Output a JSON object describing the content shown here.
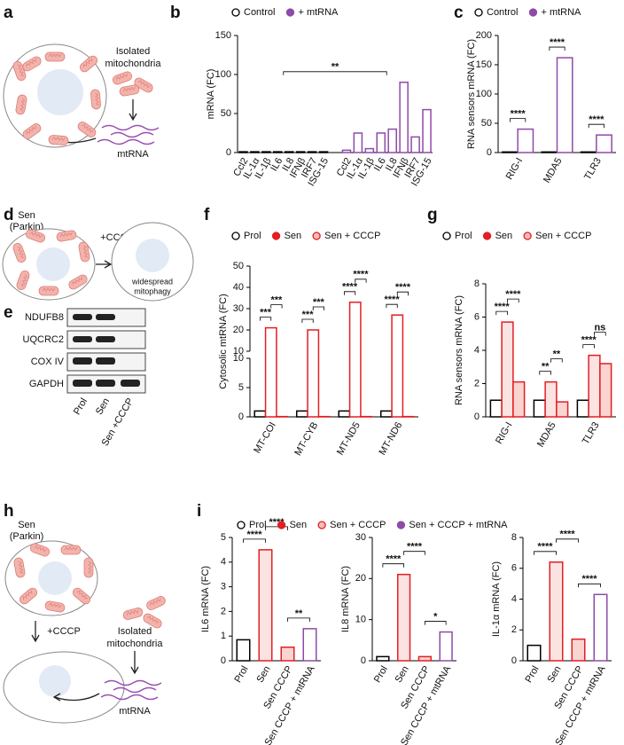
{
  "panels": [
    "a",
    "b",
    "c",
    "d",
    "e",
    "f",
    "g",
    "h",
    "i"
  ],
  "diagram_a": {
    "isolated": [
      "Isolated",
      "mitochondria"
    ],
    "rna": "mtRNA"
  },
  "diagram_d": {
    "cell": [
      "Sen",
      "(Parkin)"
    ],
    "treatment": "+CCCP",
    "result": [
      "widespread",
      "mitophagy"
    ]
  },
  "blot": {
    "proteins": [
      "NDUFB8",
      "UQCRC2",
      "COX IV",
      "GAPDH"
    ],
    "lanes": [
      "Prol",
      "Sen",
      "Sen +CCCP"
    ]
  },
  "diagram_h": {
    "cell": [
      "Sen",
      "(Parkin)"
    ],
    "treatment": "+CCCP",
    "isolated": [
      "Isolated",
      "mitochondria"
    ],
    "rna": "mtRNA"
  },
  "chart_data": [
    {
      "type": "bar",
      "ylabel": "mRNA (FC)",
      "categories": [
        "Ccl2",
        "IL-1α",
        "IL-1β",
        "IL6",
        "IL8",
        "IFNβ",
        "IRF7",
        "ISG-15"
      ],
      "series": [
        {
          "name": "Control",
          "color": "#000000",
          "fill": "#ffffff",
          "marker": "#ffffff",
          "values": [
            1,
            1,
            1,
            1,
            1,
            1,
            1,
            1
          ]
        },
        {
          "name": "+ mtRNA",
          "color": "#8e4ba8",
          "fill": "#ffffff",
          "marker": "#8e4ba8",
          "values": [
            3,
            25,
            5,
            25,
            30,
            90,
            20,
            55
          ]
        }
      ],
      "ylim": [
        0,
        150
      ],
      "yticks": [
        0,
        50,
        100,
        150
      ],
      "legend": true,
      "annotations": [
        {
          "label": "**",
          "pair": [
            0,
            1
          ]
        }
      ]
    },
    {
      "type": "bar",
      "ylabel": "RNA sensors mRNA (FC)",
      "categories": [
        "RIG-I",
        "MDA5",
        "TLR3"
      ],
      "series": [
        {
          "name": "Control",
          "color": "#000000",
          "fill": "#ffffff",
          "marker": "#ffffff",
          "values": [
            1,
            1,
            1
          ]
        },
        {
          "name": "+ mtRNA",
          "color": "#8e4ba8",
          "fill": "#ffffff",
          "marker": "#8e4ba8",
          "values": [
            40,
            162,
            30
          ]
        }
      ],
      "ylim": [
        0,
        200
      ],
      "yticks": [
        0,
        50,
        100,
        150,
        200
      ],
      "legend": true,
      "annotations": [
        {
          "label": "****",
          "category": 0,
          "pair": [
            0,
            1
          ]
        },
        {
          "label": "****",
          "category": 1,
          "pair": [
            0,
            1
          ]
        },
        {
          "label": "****",
          "category": 2,
          "pair": [
            0,
            1
          ]
        }
      ]
    },
    {
      "type": "bar",
      "ylabel": "Cytosolic mtRNA (FC)",
      "categories": [
        "MT-COI",
        "MT-CYB",
        "MT-ND5",
        "MT-ND6"
      ],
      "series": [
        {
          "name": "Prol",
          "color": "#000000",
          "fill": "#ffffff",
          "marker": "#ffffff",
          "values": [
            1,
            1,
            1,
            1
          ]
        },
        {
          "name": "Sen",
          "color": "#e31e24",
          "fill": "#ffffff",
          "marker": "#e31e24",
          "values": [
            21,
            20,
            33,
            27
          ]
        },
        {
          "name": "Sen + CCCP",
          "color": "#e31e24",
          "fill": "#fad4d0",
          "marker": "#f5bdb8",
          "values": [
            0.05,
            0.05,
            0.05,
            0.05
          ]
        }
      ],
      "ylim": [
        0,
        50
      ],
      "ybreak": 10,
      "yticks": [
        0,
        5,
        10,
        20,
        30,
        40,
        50
      ],
      "legend": true,
      "annotations": [
        {
          "label": "***",
          "category": 0,
          "pair": [
            0,
            1
          ]
        },
        {
          "label": "***",
          "category": 0,
          "pair": [
            1,
            2
          ]
        },
        {
          "label": "***",
          "category": 1,
          "pair": [
            0,
            1
          ]
        },
        {
          "label": "***",
          "category": 1,
          "pair": [
            1,
            2
          ]
        },
        {
          "label": "****",
          "category": 2,
          "pair": [
            0,
            1
          ]
        },
        {
          "label": "****",
          "category": 2,
          "pair": [
            1,
            2
          ]
        },
        {
          "label": "****",
          "category": 3,
          "pair": [
            0,
            1
          ]
        },
        {
          "label": "****",
          "category": 3,
          "pair": [
            1,
            2
          ]
        }
      ]
    },
    {
      "type": "bar",
      "ylabel": "RNA sensors mRNA (FC)",
      "categories": [
        "RIG-I",
        "MDA5",
        "TLR3"
      ],
      "series": [
        {
          "name": "Prol",
          "color": "#000000",
          "fill": "#ffffff",
          "marker": "#ffffff",
          "values": [
            1,
            1,
            1
          ]
        },
        {
          "name": "Sen",
          "color": "#e31e24",
          "fill": "#fbe3e1",
          "marker": "#e31e24",
          "values": [
            5.7,
            2.1,
            3.7
          ]
        },
        {
          "name": "Sen + CCCP",
          "color": "#e31e24",
          "fill": "#fad4d0",
          "marker": "#f5bdb8",
          "values": [
            2.1,
            0.9,
            3.2
          ]
        }
      ],
      "ylim": [
        0,
        8
      ],
      "yticks": [
        0,
        2,
        4,
        6,
        8
      ],
      "legend": true,
      "annotations": [
        {
          "label": "****",
          "category": 0,
          "pair": [
            0,
            1
          ]
        },
        {
          "label": "****",
          "category": 0,
          "pair": [
            1,
            2
          ]
        },
        {
          "label": "**",
          "category": 1,
          "pair": [
            0,
            1
          ]
        },
        {
          "label": "**",
          "category": 1,
          "pair": [
            1,
            2
          ]
        },
        {
          "label": "****",
          "category": 2,
          "pair": [
            0,
            1
          ]
        },
        {
          "label": "ns",
          "category": 2,
          "pair": [
            1,
            2
          ]
        }
      ]
    },
    {
      "type": "bar",
      "ylabel": "IL6 mRNA (FC)",
      "categories": [
        "Prol",
        "Sen",
        "Sen CCCP",
        "Sen CCCP + mtRNA"
      ],
      "values": [
        0.85,
        4.5,
        0.55,
        1.3
      ],
      "colors": [
        "#000000",
        "#e31e24",
        "#e31e24",
        "#8e4ba8"
      ],
      "fills": [
        "#ffffff",
        "#fbe3e1",
        "#fad4d0",
        "#ffffff"
      ],
      "ylim": [
        0,
        5
      ],
      "yticks": [
        0,
        1,
        2,
        3,
        4,
        5
      ],
      "legend_entries": [
        {
          "name": "Prol",
          "color": "#000000",
          "marker": "#ffffff"
        },
        {
          "name": "Sen",
          "color": "#e31e24",
          "marker": "#e31e24"
        },
        {
          "name": "Sen + CCCP",
          "color": "#e31e24",
          "marker": "#f5bdb8"
        },
        {
          "name": "Sen + CCCP + mtRNA",
          "color": "#8e4ba8",
          "marker": "#8e4ba8"
        }
      ],
      "annotations": [
        {
          "label": "****",
          "pair": [
            0,
            1
          ]
        },
        {
          "label": "****",
          "pair": [
            1,
            2
          ]
        },
        {
          "label": "**",
          "pair": [
            2,
            3
          ]
        }
      ]
    },
    {
      "type": "bar",
      "ylabel": "IL8 mRNA (FC)",
      "categories": [
        "Prol",
        "Sen",
        "Sen CCCP",
        "Sen CCCP + mtRNA"
      ],
      "values": [
        1,
        21,
        1,
        7
      ],
      "colors": [
        "#000000",
        "#e31e24",
        "#e31e24",
        "#8e4ba8"
      ],
      "fills": [
        "#ffffff",
        "#fbe3e1",
        "#fad4d0",
        "#ffffff"
      ],
      "ylim": [
        0,
        30
      ],
      "yticks": [
        0,
        10,
        20,
        30
      ],
      "annotations": [
        {
          "label": "****",
          "pair": [
            0,
            1
          ]
        },
        {
          "label": "****",
          "pair": [
            1,
            2
          ]
        },
        {
          "label": "*",
          "pair": [
            2,
            3
          ]
        }
      ]
    },
    {
      "type": "bar",
      "ylabel": "IL-1α mRNA (FC)",
      "categories": [
        "Prol",
        "Sen",
        "Sen CCCP",
        "Sen CCCP + mtRNA"
      ],
      "values": [
        1,
        6.4,
        1.4,
        4.3
      ],
      "colors": [
        "#000000",
        "#e31e24",
        "#e31e24",
        "#8e4ba8"
      ],
      "fills": [
        "#ffffff",
        "#fbe3e1",
        "#fad4d0",
        "#ffffff"
      ],
      "ylim": [
        0,
        8
      ],
      "yticks": [
        0,
        2,
        4,
        6,
        8
      ],
      "annotations": [
        {
          "label": "****",
          "pair": [
            0,
            1
          ]
        },
        {
          "label": "****",
          "pair": [
            1,
            2
          ]
        },
        {
          "label": "****",
          "pair": [
            2,
            3
          ]
        }
      ]
    }
  ]
}
